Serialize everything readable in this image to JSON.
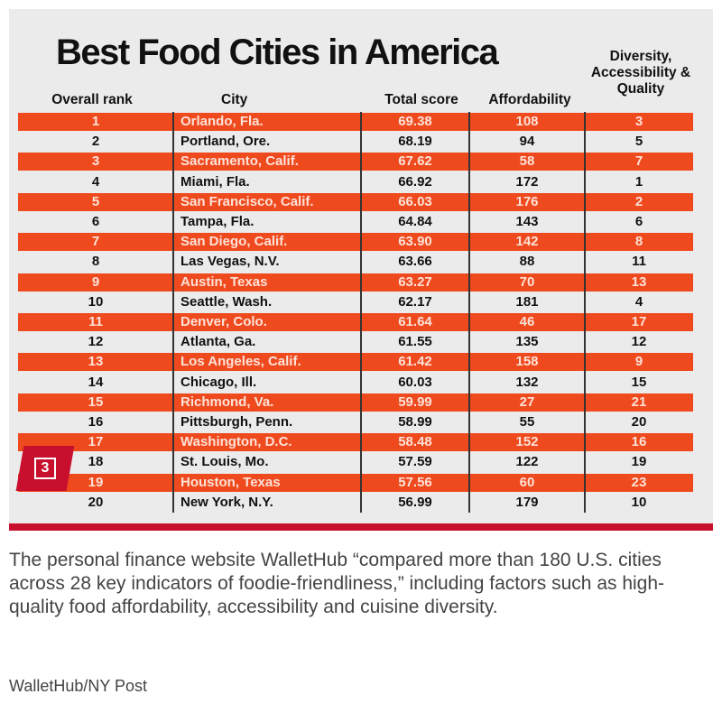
{
  "chart_data": {
    "type": "table",
    "title": "Best Food Cities in America",
    "columns": [
      "Overall rank",
      "City",
      "Total score",
      "Affordability",
      "Diversity, Accessibility & Quality"
    ],
    "rows": [
      {
        "rank": "1",
        "city": "Orlando, Fla.",
        "total": "69.38",
        "afford": "108",
        "div": "3"
      },
      {
        "rank": "2",
        "city": "Portland, Ore.",
        "total": "68.19",
        "afford": "94",
        "div": "5"
      },
      {
        "rank": "3",
        "city": "Sacramento, Calif.",
        "total": "67.62",
        "afford": "58",
        "div": "7"
      },
      {
        "rank": "4",
        "city": "Miami, Fla.",
        "total": "66.92",
        "afford": "172",
        "div": "1"
      },
      {
        "rank": "5",
        "city": "San Francisco, Calif.",
        "total": "66.03",
        "afford": "176",
        "div": "2"
      },
      {
        "rank": "6",
        "city": "Tampa, Fla.",
        "total": "64.84",
        "afford": "143",
        "div": "6"
      },
      {
        "rank": "7",
        "city": "San Diego, Calif.",
        "total": "63.90",
        "afford": "142",
        "div": "8"
      },
      {
        "rank": "8",
        "city": "Las Vegas, N.V.",
        "total": "63.66",
        "afford": "88",
        "div": "11"
      },
      {
        "rank": "9",
        "city": "Austin, Texas",
        "total": "63.27",
        "afford": "70",
        "div": "13"
      },
      {
        "rank": "10",
        "city": "Seattle, Wash.",
        "total": "62.17",
        "afford": "181",
        "div": "4"
      },
      {
        "rank": "11",
        "city": "Denver, Colo.",
        "total": "61.64",
        "afford": "46",
        "div": "17"
      },
      {
        "rank": "12",
        "city": "Atlanta, Ga.",
        "total": "61.55",
        "afford": "135",
        "div": "12"
      },
      {
        "rank": "13",
        "city": "Los Angeles, Calif.",
        "total": "61.42",
        "afford": "158",
        "div": "9"
      },
      {
        "rank": "14",
        "city": "Chicago, Ill.",
        "total": "60.03",
        "afford": "132",
        "div": "15"
      },
      {
        "rank": "15",
        "city": "Richmond, Va.",
        "total": "59.99",
        "afford": "27",
        "div": "21"
      },
      {
        "rank": "16",
        "city": "Pittsburgh, Penn.",
        "total": "58.99",
        "afford": "55",
        "div": "20"
      },
      {
        "rank": "17",
        "city": "Washington, D.C.",
        "total": "58.48",
        "afford": "152",
        "div": "16"
      },
      {
        "rank": "18",
        "city": "St. Louis, Mo.",
        "total": "57.59",
        "afford": "122",
        "div": "19"
      },
      {
        "rank": "19",
        "city": "Houston, Texas",
        "total": "57.56",
        "afford": "60",
        "div": "23"
      },
      {
        "rank": "20",
        "city": "New York, N.Y.",
        "total": "56.99",
        "afford": "179",
        "div": "10"
      }
    ]
  },
  "badge": "3",
  "caption": "The personal finance website WalletHub “compared more than 180 U.S. cities across 28 key indicators of foodie-friendliness,” including factors such as high-quality food affordability, accessibility and cuisine diversity.",
  "credit": "WalletHub/NY Post",
  "colors": {
    "highlight": "#ef4a1e",
    "accent": "#c8102e"
  }
}
